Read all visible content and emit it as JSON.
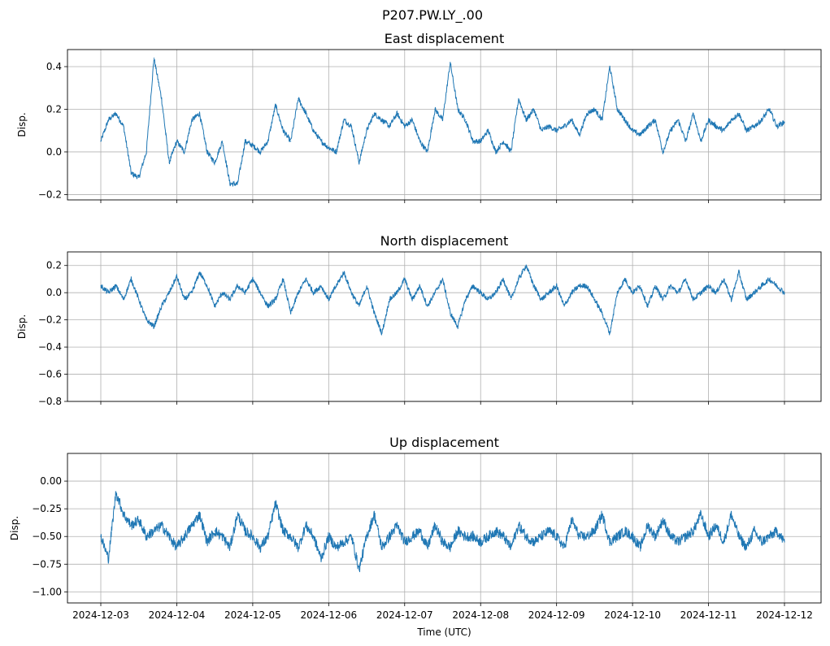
{
  "figure": {
    "suptitle": "P207.PW.LY_.00",
    "line_color": "#1f77b4",
    "grid_color": "#b0b0b0"
  },
  "chart_data": [
    {
      "type": "line",
      "title": "East displacement",
      "xlabel": "",
      "ylabel": "Disp.",
      "xlim": [
        0,
        9
      ],
      "ylim": [
        -0.225,
        0.48
      ],
      "yticks": [
        -0.2,
        0.0,
        0.2,
        0.4
      ],
      "ytick_labels": [
        "−0.2",
        "0.0",
        "0.2",
        "0.4"
      ],
      "grid": true,
      "x": [
        0,
        0.1,
        0.2,
        0.3,
        0.4,
        0.5,
        0.6,
        0.7,
        0.8,
        0.9,
        1.0,
        1.1,
        1.2,
        1.3,
        1.4,
        1.5,
        1.6,
        1.7,
        1.8,
        1.9,
        2.0,
        2.1,
        2.2,
        2.3,
        2.4,
        2.5,
        2.6,
        2.7,
        2.8,
        2.9,
        3.0,
        3.1,
        3.2,
        3.3,
        3.4,
        3.5,
        3.6,
        3.7,
        3.8,
        3.9,
        4.0,
        4.1,
        4.2,
        4.3,
        4.4,
        4.5,
        4.6,
        4.7,
        4.8,
        4.9,
        5.0,
        5.1,
        5.2,
        5.3,
        5.4,
        5.5,
        5.6,
        5.7,
        5.8,
        5.9,
        6.0,
        6.1,
        6.2,
        6.3,
        6.4,
        6.5,
        6.6,
        6.7,
        6.8,
        6.9,
        7.0,
        7.1,
        7.2,
        7.3,
        7.4,
        7.5,
        7.6,
        7.7,
        7.8,
        7.9,
        8.0,
        8.1,
        8.2,
        8.3,
        8.4,
        8.5,
        8.6,
        8.7,
        8.8,
        8.9,
        9.0
      ],
      "values": [
        0.05,
        0.15,
        0.18,
        0.12,
        -0.1,
        -0.12,
        0.0,
        0.44,
        0.25,
        -0.05,
        0.05,
        0.0,
        0.15,
        0.18,
        0.0,
        -0.05,
        0.05,
        -0.15,
        -0.15,
        0.05,
        0.03,
        0.0,
        0.05,
        0.22,
        0.1,
        0.05,
        0.25,
        0.18,
        0.1,
        0.05,
        0.02,
        0.0,
        0.15,
        0.12,
        -0.05,
        0.1,
        0.18,
        0.15,
        0.12,
        0.18,
        0.12,
        0.15,
        0.05,
        0.0,
        0.2,
        0.15,
        0.42,
        0.2,
        0.15,
        0.05,
        0.05,
        0.1,
        0.0,
        0.05,
        0.0,
        0.25,
        0.15,
        0.2,
        0.1,
        0.12,
        0.1,
        0.12,
        0.15,
        0.08,
        0.18,
        0.2,
        0.15,
        0.4,
        0.2,
        0.15,
        0.1,
        0.08,
        0.12,
        0.15,
        0.0,
        0.1,
        0.15,
        0.05,
        0.18,
        0.05,
        0.15,
        0.12,
        0.1,
        0.15,
        0.18,
        0.1,
        0.12,
        0.15,
        0.2,
        0.12,
        0.14
      ]
    },
    {
      "type": "line",
      "title": "North displacement",
      "xlabel": "",
      "ylabel": "Disp.",
      "xlim": [
        0,
        9
      ],
      "ylim": [
        -0.8,
        0.3
      ],
      "yticks": [
        -0.8,
        -0.6,
        -0.4,
        -0.2,
        0.0,
        0.2
      ],
      "ytick_labels": [
        "−0.8",
        "−0.6",
        "−0.4",
        "−0.2",
        "0.0",
        "0.2"
      ],
      "grid": true,
      "x": [
        0,
        0.1,
        0.2,
        0.3,
        0.4,
        0.5,
        0.6,
        0.7,
        0.8,
        0.9,
        1.0,
        1.1,
        1.2,
        1.3,
        1.4,
        1.5,
        1.6,
        1.7,
        1.8,
        1.9,
        2.0,
        2.1,
        2.2,
        2.3,
        2.4,
        2.5,
        2.6,
        2.7,
        2.8,
        2.9,
        3.0,
        3.1,
        3.2,
        3.3,
        3.4,
        3.5,
        3.6,
        3.7,
        3.8,
        3.9,
        4.0,
        4.1,
        4.2,
        4.3,
        4.4,
        4.5,
        4.6,
        4.7,
        4.8,
        4.9,
        5.0,
        5.1,
        5.2,
        5.3,
        5.4,
        5.5,
        5.6,
        5.7,
        5.8,
        5.9,
        6.0,
        6.1,
        6.2,
        6.3,
        6.4,
        6.5,
        6.6,
        6.7,
        6.8,
        6.9,
        7.0,
        7.1,
        7.2,
        7.3,
        7.4,
        7.5,
        7.6,
        7.7,
        7.8,
        7.9,
        8.0,
        8.1,
        8.2,
        8.3,
        8.4,
        8.5,
        8.6,
        8.7,
        8.8,
        8.9,
        9.0
      ],
      "values": [
        0.05,
        0.0,
        0.05,
        -0.05,
        0.1,
        -0.05,
        -0.2,
        -0.25,
        -0.1,
        0.0,
        0.12,
        -0.05,
        0.0,
        0.15,
        0.05,
        -0.1,
        0.0,
        -0.05,
        0.05,
        0.0,
        0.1,
        0.0,
        -0.1,
        -0.05,
        0.1,
        -0.15,
        0.0,
        0.1,
        0.0,
        0.05,
        -0.05,
        0.05,
        0.15,
        0.0,
        -0.1,
        0.05,
        -0.15,
        -0.3,
        -0.05,
        0.0,
        0.1,
        -0.05,
        0.05,
        -0.1,
        0.0,
        0.1,
        -0.15,
        -0.25,
        -0.05,
        0.05,
        0.0,
        -0.05,
        0.0,
        0.1,
        -0.05,
        0.1,
        0.2,
        0.05,
        -0.05,
        0.0,
        0.05,
        -0.1,
        0.0,
        0.05,
        0.05,
        -0.05,
        -0.15,
        -0.3,
        0.0,
        0.1,
        0.0,
        0.05,
        -0.1,
        0.05,
        -0.05,
        0.05,
        0.0,
        0.1,
        -0.05,
        0.0,
        0.05,
        0.0,
        0.1,
        -0.05,
        0.15,
        -0.05,
        0.0,
        0.05,
        0.1,
        0.05,
        0.0
      ]
    },
    {
      "type": "line",
      "title": "Up displacement",
      "xlabel": "Time (UTC)",
      "ylabel": "Disp.",
      "xlim": [
        0,
        9
      ],
      "ylim": [
        -1.1,
        0.25
      ],
      "yticks": [
        -1.0,
        -0.75,
        -0.5,
        -0.25,
        0.0
      ],
      "ytick_labels": [
        "−1.00",
        "−0.75",
        "−0.50",
        "−0.25",
        "0.00"
      ],
      "xtick_labels": [
        "2024-12-03",
        "2024-12-04",
        "2024-12-05",
        "2024-12-06",
        "2024-12-07",
        "2024-12-08",
        "2024-12-09",
        "2024-12-10",
        "2024-12-11",
        "2024-12-12"
      ],
      "grid": true,
      "x": [
        0,
        0.1,
        0.2,
        0.3,
        0.4,
        0.5,
        0.6,
        0.7,
        0.8,
        0.9,
        1.0,
        1.1,
        1.2,
        1.3,
        1.4,
        1.5,
        1.6,
        1.7,
        1.8,
        1.9,
        2.0,
        2.1,
        2.2,
        2.3,
        2.4,
        2.5,
        2.6,
        2.7,
        2.8,
        2.9,
        3.0,
        3.1,
        3.2,
        3.3,
        3.4,
        3.5,
        3.6,
        3.7,
        3.8,
        3.9,
        4.0,
        4.1,
        4.2,
        4.3,
        4.4,
        4.5,
        4.6,
        4.7,
        4.8,
        4.9,
        5.0,
        5.1,
        5.2,
        5.3,
        5.4,
        5.5,
        5.6,
        5.7,
        5.8,
        5.9,
        6.0,
        6.1,
        6.2,
        6.3,
        6.4,
        6.5,
        6.6,
        6.7,
        6.8,
        6.9,
        7.0,
        7.1,
        7.2,
        7.3,
        7.4,
        7.5,
        7.6,
        7.7,
        7.8,
        7.9,
        8.0,
        8.1,
        8.2,
        8.3,
        8.4,
        8.5,
        8.6,
        8.7,
        8.8,
        8.9,
        9.0
      ],
      "values": [
        -0.5,
        -0.7,
        -0.1,
        -0.3,
        -0.4,
        -0.35,
        -0.5,
        -0.45,
        -0.4,
        -0.5,
        -0.6,
        -0.5,
        -0.4,
        -0.3,
        -0.55,
        -0.45,
        -0.5,
        -0.6,
        -0.3,
        -0.45,
        -0.5,
        -0.6,
        -0.5,
        -0.2,
        -0.45,
        -0.5,
        -0.6,
        -0.4,
        -0.5,
        -0.7,
        -0.5,
        -0.6,
        -0.55,
        -0.5,
        -0.8,
        -0.5,
        -0.3,
        -0.6,
        -0.5,
        -0.4,
        -0.55,
        -0.5,
        -0.45,
        -0.6,
        -0.4,
        -0.55,
        -0.6,
        -0.45,
        -0.5,
        -0.5,
        -0.55,
        -0.5,
        -0.45,
        -0.5,
        -0.6,
        -0.4,
        -0.5,
        -0.55,
        -0.5,
        -0.45,
        -0.5,
        -0.6,
        -0.35,
        -0.5,
        -0.5,
        -0.45,
        -0.3,
        -0.55,
        -0.5,
        -0.45,
        -0.5,
        -0.6,
        -0.4,
        -0.5,
        -0.35,
        -0.5,
        -0.55,
        -0.5,
        -0.45,
        -0.3,
        -0.5,
        -0.4,
        -0.55,
        -0.3,
        -0.5,
        -0.6,
        -0.45,
        -0.55,
        -0.5,
        -0.45,
        -0.55
      ]
    }
  ]
}
